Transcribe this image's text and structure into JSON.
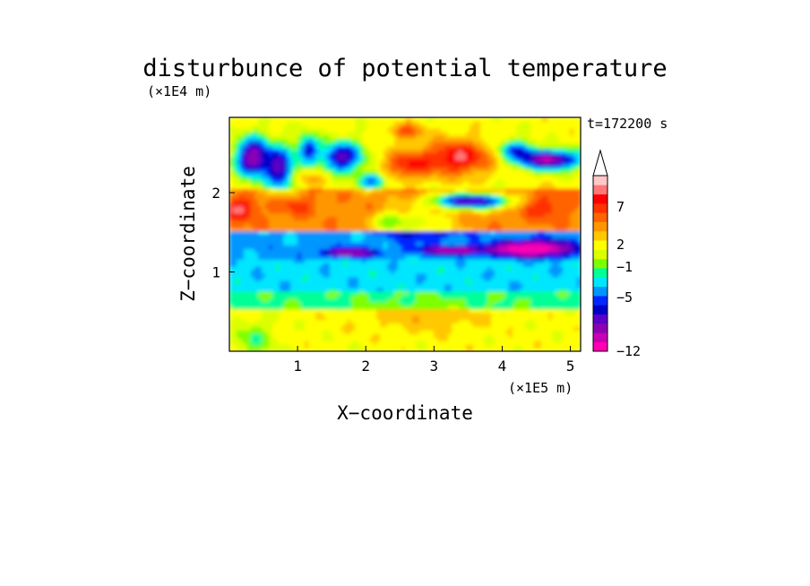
{
  "chart_data": {
    "type": "heatmap",
    "title": "disturbunce of potential temperature",
    "xlabel": "X−coordinate",
    "ylabel": "Z−coordinate",
    "x_unit": "(×1E5 m)",
    "y_unit": "(×1E4 m)",
    "time_label": "t=172200 s",
    "x_ticks": [
      "1",
      "2",
      "3",
      "4",
      "5"
    ],
    "y_ticks": [
      "1",
      "2"
    ],
    "xlim": [
      0,
      5.15
    ],
    "ylim": [
      0,
      2.95
    ],
    "colorbar": {
      "labels": [
        "−12",
        "−5",
        "−1",
        "2",
        "7"
      ],
      "colors": [
        "#ff00b4",
        "#c800b4",
        "#8c00b4",
        "#5a00c8",
        "#0000c8",
        "#0028ff",
        "#0096ff",
        "#00e6ff",
        "#00ff96",
        "#7dff00",
        "#dcff00",
        "#ffff00",
        "#ffc800",
        "#ff9600",
        "#ff6400",
        "#ff3200",
        "#ff0000",
        "#ff7878",
        "#ffc8c8"
      ]
    },
    "dominant_levels_by_height": [
      {
        "z_range": [
          0,
          0.6
        ],
        "value": "0 to 2"
      },
      {
        "z_range": [
          0.6,
          0.8
        ],
        "value": "-1 to 0"
      },
      {
        "z_range": [
          0.8,
          1.2
        ],
        "value": "-2 to -1"
      },
      {
        "z_range": [
          1.2,
          1.5
        ],
        "value": "-5 to -2"
      },
      {
        "z_range": [
          1.5,
          2.0
        ],
        "value": "2 to 7"
      },
      {
        "z_range": [
          2.0,
          2.95
        ],
        "value": "-5 to 7"
      }
    ]
  }
}
